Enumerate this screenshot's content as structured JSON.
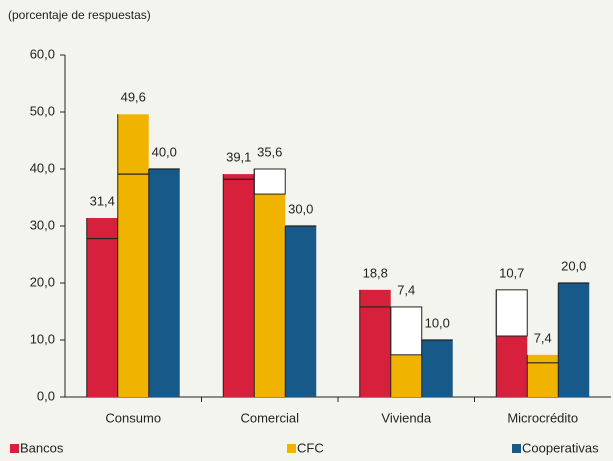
{
  "chart_data": {
    "type": "bar",
    "ylabel": "(porcentaje de respuestas)",
    "categories": [
      "Consumo",
      "Comercial",
      "Vivienda",
      "Microcrédito"
    ],
    "series": [
      {
        "name": "Bancos",
        "color": "#d7203b",
        "values": [
          31.4,
          39.1,
          18.8,
          10.7
        ],
        "value_labels": [
          "31,4",
          "39,1",
          "18,8",
          "10,7"
        ],
        "outline_values": [
          27.8,
          38.2,
          15.8,
          18.8
        ]
      },
      {
        "name": "CFC",
        "color": "#f0b400",
        "values": [
          49.6,
          35.6,
          7.4,
          7.4
        ],
        "value_labels": [
          "49,6",
          "35,6",
          "7,4",
          "7,4"
        ],
        "outline_values": [
          39.1,
          40.0,
          15.8,
          6.0
        ]
      },
      {
        "name": "Cooperativas",
        "color": "#175a8a",
        "values": [
          40.0,
          30.0,
          10.0,
          20.0
        ],
        "value_labels": [
          "40,0",
          "30,0",
          "10,0",
          "20,0"
        ],
        "outline_values": [
          40.0,
          30.0,
          10.0,
          20.0
        ]
      }
    ],
    "ylim": [
      0,
      60
    ],
    "yticks": [
      {
        "value": 0,
        "label": "0,0"
      },
      {
        "value": 10,
        "label": "10,0"
      },
      {
        "value": 20,
        "label": "20,0"
      },
      {
        "value": 30,
        "label": "30,0"
      },
      {
        "value": 40,
        "label": "40,0"
      },
      {
        "value": 50,
        "label": "50,0"
      },
      {
        "value": 60,
        "label": "60,0"
      }
    ]
  }
}
